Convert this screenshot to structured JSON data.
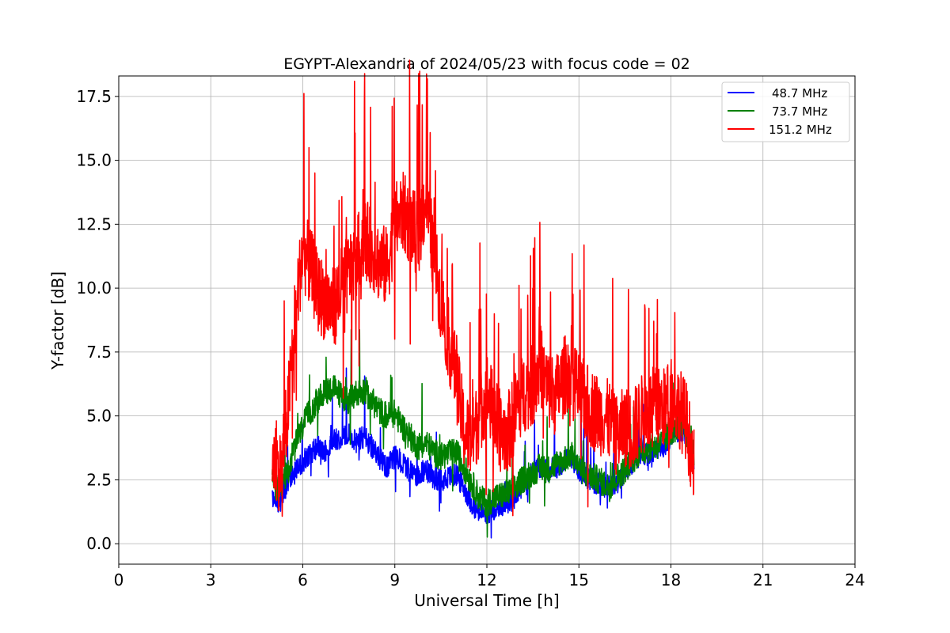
{
  "chart_data": {
    "type": "line",
    "title": "EGYPT-Alexandria of 2024/05/23 with focus code = 02",
    "xlabel": "Universal Time [h]",
    "ylabel": "Y-factor [dB]",
    "xlim": [
      0,
      24
    ],
    "ylim": [
      -0.8,
      18.3
    ],
    "xticks": [
      0,
      3,
      6,
      9,
      12,
      15,
      18,
      21,
      24
    ],
    "yticks": [
      0.0,
      2.5,
      5.0,
      7.5,
      10.0,
      12.5,
      15.0,
      17.5
    ],
    "xtick_labels": [
      "0",
      "3",
      "6",
      "9",
      "12",
      "15",
      "18",
      "21",
      "24"
    ],
    "ytick_labels": [
      "0.0",
      "2.5",
      "5.0",
      "7.5",
      "10.0",
      "12.5",
      "15.0",
      "17.5"
    ],
    "grid": true,
    "legend_position": "top-right",
    "series": [
      {
        "name": "48.7 MHz",
        "color": "#0000ff",
        "x": [
          5.0,
          5.25,
          5.5,
          5.75,
          6.0,
          6.25,
          6.5,
          6.75,
          7.0,
          7.25,
          7.5,
          7.75,
          8.0,
          8.25,
          8.5,
          8.75,
          9.0,
          9.25,
          9.5,
          9.75,
          10.0,
          10.25,
          10.5,
          10.75,
          11.0,
          11.25,
          11.5,
          11.75,
          12.0,
          12.25,
          12.5,
          12.75,
          13.0,
          13.25,
          13.5,
          13.75,
          14.0,
          14.25,
          14.5,
          14.75,
          15.0,
          15.25,
          15.5,
          15.75,
          16.0,
          16.25,
          16.5,
          16.75,
          17.0,
          17.25,
          17.5,
          17.75,
          18.0,
          18.25,
          18.5,
          18.75
        ],
        "values": [
          1.8,
          1.6,
          2.4,
          2.8,
          3.2,
          3.5,
          3.8,
          3.6,
          4.0,
          4.2,
          4.3,
          4.0,
          4.2,
          3.8,
          3.3,
          3.0,
          3.4,
          3.2,
          2.8,
          2.7,
          2.9,
          2.6,
          2.5,
          2.6,
          2.7,
          2.2,
          1.6,
          1.2,
          1.1,
          1.4,
          1.5,
          1.6,
          2.0,
          2.5,
          2.8,
          3.0,
          2.8,
          3.0,
          3.2,
          3.4,
          2.9,
          2.6,
          2.4,
          2.3,
          2.2,
          2.4,
          2.8,
          3.2,
          3.5,
          3.5,
          3.6,
          3.8,
          4.2,
          4.4,
          4.2,
          3.2
        ]
      },
      {
        "name": "73.7 MHz",
        "color": "#008000",
        "x": [
          5.0,
          5.25,
          5.5,
          5.75,
          6.0,
          6.25,
          6.5,
          6.75,
          7.0,
          7.25,
          7.5,
          7.75,
          8.0,
          8.25,
          8.5,
          8.75,
          9.0,
          9.25,
          9.5,
          9.75,
          10.0,
          10.25,
          10.5,
          10.75,
          11.0,
          11.25,
          11.5,
          11.75,
          12.0,
          12.25,
          12.5,
          12.75,
          13.0,
          13.25,
          13.5,
          13.75,
          14.0,
          14.25,
          14.5,
          14.75,
          15.0,
          15.25,
          15.5,
          15.75,
          16.0,
          16.25,
          16.5,
          16.75,
          17.0,
          17.25,
          17.5,
          17.75,
          18.0,
          18.25,
          18.5,
          18.75
        ],
        "values": [
          2.4,
          2.0,
          2.8,
          3.8,
          4.6,
          5.2,
          5.6,
          6.0,
          6.1,
          5.8,
          5.6,
          5.9,
          6.0,
          5.6,
          5.2,
          5.0,
          5.1,
          4.6,
          4.2,
          3.8,
          4.0,
          3.6,
          3.4,
          3.5,
          3.6,
          3.0,
          2.4,
          1.8,
          1.6,
          1.8,
          1.9,
          2.0,
          2.3,
          2.6,
          2.8,
          3.0,
          2.9,
          3.1,
          3.3,
          3.5,
          3.0,
          2.7,
          2.6,
          2.4,
          2.2,
          2.6,
          2.9,
          3.3,
          3.6,
          3.7,
          3.8,
          4.0,
          4.4,
          4.6,
          4.3,
          3.4
        ]
      },
      {
        "name": "151.2 MHz",
        "color": "#ff0000",
        "x": [
          5.0,
          5.25,
          5.5,
          5.75,
          6.0,
          6.25,
          6.5,
          6.75,
          7.0,
          7.25,
          7.5,
          7.75,
          8.0,
          8.25,
          8.5,
          8.75,
          9.0,
          9.25,
          9.5,
          9.75,
          10.0,
          10.25,
          10.5,
          10.75,
          11.0,
          11.25,
          11.5,
          11.75,
          12.0,
          12.25,
          12.5,
          12.75,
          13.0,
          13.25,
          13.5,
          13.75,
          14.0,
          14.25,
          14.5,
          14.75,
          15.0,
          15.25,
          15.5,
          15.75,
          16.0,
          16.25,
          16.5,
          16.75,
          17.0,
          17.25,
          17.5,
          17.75,
          18.0,
          18.25,
          18.5,
          18.75
        ],
        "values": [
          3.5,
          2.8,
          5.0,
          9.0,
          11.5,
          10.8,
          9.8,
          9.5,
          9.2,
          10.0,
          10.6,
          11.2,
          12.0,
          11.5,
          11.0,
          10.8,
          12.5,
          13.0,
          12.5,
          12.0,
          13.5,
          11.5,
          9.5,
          8.0,
          6.5,
          4.5,
          4.0,
          5.0,
          6.0,
          5.0,
          4.2,
          4.5,
          5.5,
          6.0,
          6.2,
          7.0,
          6.0,
          5.8,
          6.5,
          7.0,
          5.8,
          5.5,
          5.2,
          5.0,
          4.8,
          4.2,
          4.6,
          4.4,
          5.0,
          5.2,
          5.4,
          5.3,
          5.6,
          5.4,
          4.8,
          3.0
        ]
      }
    ]
  }
}
